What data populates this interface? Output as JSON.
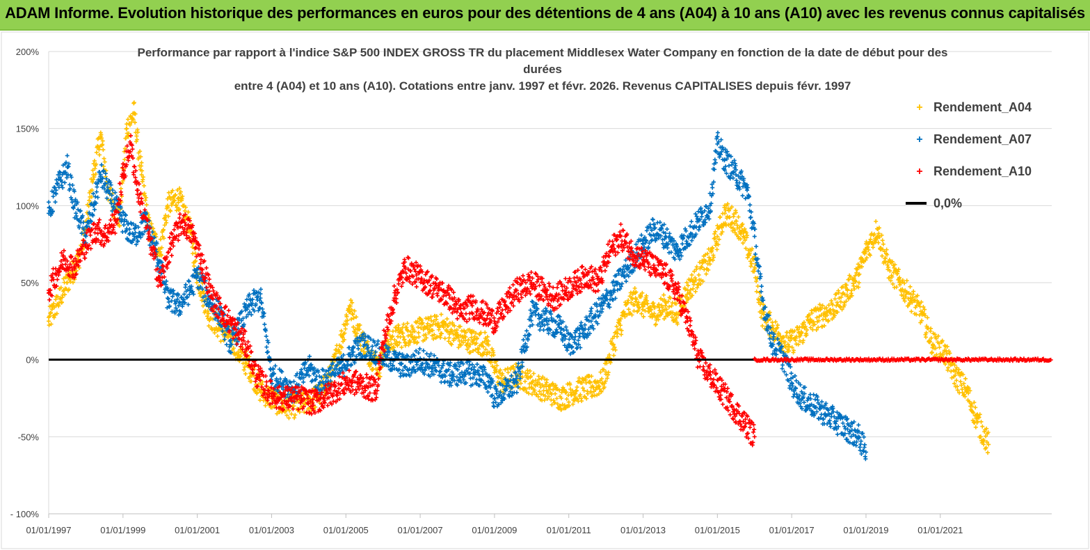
{
  "header": {
    "title": "ADAM Informe. Evolution historique des performances en euros pour des détentions de 4 ans (A04) à 10 ans (A10) avec les revenus connus capitalisés"
  },
  "colors": {
    "banner": "#92d050",
    "A04": "#ffc000",
    "A07": "#0070c0",
    "A10": "#ff0000",
    "zero": "#000000"
  },
  "chart_data": {
    "type": "scatter",
    "title_lines": [
      "Performance par rapport à l'indice S&P 500 INDEX GROSS TR  du placement Middlesex Water Company en fonction de la date de début pour des",
      "durées",
      "entre 4 (A04) et 10 ans (A10). Cotations entre janv. 1997 et févr. 2026. Revenus CAPITALISES depuis févr. 1997"
    ],
    "ylim": [
      -100,
      200
    ],
    "y_ticks": [
      {
        "value": 200,
        "label": "200%"
      },
      {
        "value": 150,
        "label": "150%"
      },
      {
        "value": 100,
        "label": "100%"
      },
      {
        "value": 50,
        "label": "50%"
      },
      {
        "value": 0,
        "label": "0%"
      },
      {
        "value": -50,
        "label": "-50%"
      },
      {
        "value": -100,
        "label": "- 100%"
      }
    ],
    "xlim": [
      1997.0,
      2024.0
    ],
    "x_ticks": [
      {
        "value": 1997,
        "label": "01/01/1997"
      },
      {
        "value": 1999,
        "label": "01/01/1999"
      },
      {
        "value": 2001,
        "label": "01/01/2001"
      },
      {
        "value": 2003,
        "label": "01/01/2003"
      },
      {
        "value": 2005,
        "label": "01/01/2005"
      },
      {
        "value": 2007,
        "label": "01/01/2007"
      },
      {
        "value": 2009,
        "label": "01/01/2009"
      },
      {
        "value": 2011,
        "label": "01/01/2011"
      },
      {
        "value": 2013,
        "label": "01/01/2013"
      },
      {
        "value": 2015,
        "label": "01/01/2015"
      },
      {
        "value": 2017,
        "label": "01/01/2017"
      },
      {
        "value": 2019,
        "label": "01/01/2019"
      },
      {
        "value": 2021,
        "label": "01/01/2021"
      }
    ],
    "series": [
      {
        "name": "Rendement_A04",
        "color": "#ffc000",
        "x": [
          1997.0,
          1997.2,
          1997.5,
          1997.8,
          1998.0,
          1998.2,
          1998.4,
          1998.6,
          1998.9,
          1999.1,
          1999.3,
          1999.5,
          1999.7,
          2000.0,
          2000.2,
          2000.5,
          2000.8,
          2001.0,
          2001.3,
          2001.6,
          2001.9,
          2002.1,
          2002.4,
          2002.7,
          2003.0,
          2003.3,
          2003.6,
          2004.0,
          2004.3,
          2004.6,
          2004.9,
          2005.1,
          2005.3,
          2005.6,
          2005.9,
          2006.1,
          2006.4,
          2006.8,
          2007.2,
          2007.6,
          2008.0,
          2008.4,
          2008.8,
          2009.0,
          2009.2,
          2009.6,
          2010.0,
          2010.4,
          2010.8,
          2011.2,
          2011.6,
          2011.9,
          2012.0,
          2012.2,
          2012.5,
          2012.8,
          2013.0,
          2013.3,
          2013.6,
          2013.9,
          2014.2,
          2014.5,
          2014.8,
          2015.0,
          2015.2,
          2015.5,
          2015.7,
          2016.0,
          2016.2,
          2016.5,
          2016.9,
          2017.2,
          2017.5,
          2017.9,
          2018.2,
          2018.5,
          2018.8,
          2019.0,
          2019.3,
          2019.6,
          2019.9,
          2020.2,
          2020.5,
          2020.8,
          2021.1,
          2021.4,
          2021.7,
          2022.0,
          2022.3
        ],
        "y": [
          25,
          35,
          50,
          65,
          85,
          120,
          145,
          110,
          90,
          150,
          160,
          120,
          85,
          70,
          100,
          105,
          85,
          55,
          30,
          20,
          15,
          5,
          -5,
          -20,
          -25,
          -30,
          -30,
          -28,
          -22,
          -10,
          15,
          35,
          20,
          5,
          -5,
          10,
          15,
          18,
          20,
          22,
          15,
          12,
          10,
          -5,
          -15,
          -10,
          -15,
          -20,
          -25,
          -20,
          -18,
          -15,
          -8,
          10,
          30,
          40,
          35,
          30,
          35,
          30,
          45,
          55,
          65,
          80,
          95,
          90,
          80,
          60,
          30,
          20,
          10,
          15,
          25,
          30,
          35,
          45,
          55,
          70,
          85,
          60,
          50,
          40,
          30,
          10,
          5,
          -10,
          -20,
          -40,
          -55
        ]
      },
      {
        "name": "Rendement_A07",
        "color": "#0070c0",
        "x": [
          1997.0,
          1997.2,
          1997.5,
          1997.7,
          1998.0,
          1998.2,
          1998.4,
          1998.6,
          1998.9,
          1999.1,
          1999.3,
          1999.6,
          1999.9,
          2000.2,
          2000.5,
          2000.8,
          2001.0,
          2001.3,
          2001.6,
          2001.9,
          2002.1,
          2002.4,
          2002.7,
          2003.0,
          2003.3,
          2003.6,
          2004.0,
          2004.3,
          2004.6,
          2004.9,
          2005.2,
          2005.5,
          2005.8,
          2006.2,
          2006.6,
          2007.0,
          2007.4,
          2007.8,
          2008.2,
          2008.6,
          2008.9,
          2009.0,
          2009.3,
          2009.6,
          2010.0,
          2010.4,
          2010.8,
          2011.0,
          2011.3,
          2011.6,
          2011.9,
          2012.2,
          2012.6,
          2013.0,
          2013.3,
          2013.6,
          2013.9,
          2014.2,
          2014.5,
          2014.8,
          2015.0,
          2015.2,
          2015.5,
          2015.8,
          2016.0,
          2016.2,
          2016.5,
          2016.8,
          2017.0,
          2017.3,
          2017.6,
          2017.9,
          2018.2,
          2018.5,
          2018.8,
          2019.0
        ],
        "y": [
          95,
          110,
          125,
          100,
          80,
          100,
          120,
          110,
          95,
          85,
          80,
          90,
          70,
          40,
          35,
          45,
          55,
          40,
          30,
          10,
          20,
          35,
          40,
          -10,
          -15,
          -20,
          -5,
          -15,
          -10,
          -5,
          5,
          10,
          5,
          0,
          -5,
          0,
          -5,
          -10,
          -8,
          -10,
          -15,
          -25,
          -20,
          -15,
          30,
          25,
          20,
          10,
          15,
          25,
          35,
          45,
          60,
          75,
          85,
          80,
          70,
          80,
          90,
          100,
          140,
          130,
          120,
          110,
          80,
          40,
          10,
          0,
          -15,
          -25,
          -30,
          -35,
          -40,
          -45,
          -50,
          -60
        ]
      },
      {
        "name": "Rendement_A10",
        "color": "#ff0000",
        "x": [
          1997.0,
          1997.2,
          1997.4,
          1997.7,
          1998.0,
          1998.3,
          1998.5,
          1998.8,
          1999.0,
          1999.2,
          1999.4,
          1999.7,
          2000.0,
          2000.3,
          2000.6,
          2000.9,
          2001.1,
          2001.4,
          2001.7,
          2002.0,
          2002.3,
          2002.6,
          2002.9,
          2003.2,
          2003.5,
          2003.8,
          2004.1,
          2004.4,
          2004.7,
          2005.0,
          2005.3,
          2005.6,
          2005.8,
          2006.0,
          2006.3,
          2006.6,
          2006.9,
          2007.2,
          2007.5,
          2007.8,
          2008.1,
          2008.4,
          2008.7,
          2009.0,
          2009.3,
          2009.6,
          2010.0,
          2010.3,
          2010.6,
          2010.9,
          2011.2,
          2011.5,
          2011.8,
          2012.1,
          2012.4,
          2012.7,
          2013.0,
          2013.3,
          2013.6,
          2013.9,
          2014.2,
          2014.5,
          2014.8,
          2015.1,
          2015.4,
          2015.7,
          2016.0
        ],
        "y": [
          45,
          55,
          65,
          60,
          75,
          85,
          80,
          90,
          120,
          140,
          110,
          80,
          50,
          75,
          90,
          80,
          65,
          40,
          30,
          20,
          10,
          -10,
          -20,
          -25,
          -25,
          -25,
          -28,
          -25,
          -20,
          -15,
          -15,
          -18,
          -20,
          10,
          40,
          60,
          55,
          50,
          45,
          40,
          30,
          35,
          30,
          25,
          35,
          45,
          50,
          45,
          40,
          45,
          50,
          55,
          50,
          70,
          80,
          70,
          65,
          60,
          55,
          45,
          25,
          0,
          -10,
          -20,
          -30,
          -40,
          -50
        ]
      },
      {
        "name": "0,0%",
        "type": "line",
        "color": "#000000",
        "x": [
          1997.0,
          2016.0
        ],
        "y": [
          0,
          0
        ]
      }
    ],
    "zero_tail": {
      "name": "Rendement_A10",
      "from": 2016.0,
      "to": 2024.0,
      "value": 0
    },
    "legend": [
      {
        "label": "Rendement_A04",
        "marker": "+",
        "color": "#ffc000"
      },
      {
        "label": "Rendement_A07",
        "marker": "+",
        "color": "#0070c0"
      },
      {
        "label": "Rendement_A10",
        "marker": "+",
        "color": "#ff0000"
      },
      {
        "label": "0,0%",
        "marker": "line",
        "color": "#000000"
      }
    ],
    "grid": "horizontal",
    "legend_position": "right"
  }
}
